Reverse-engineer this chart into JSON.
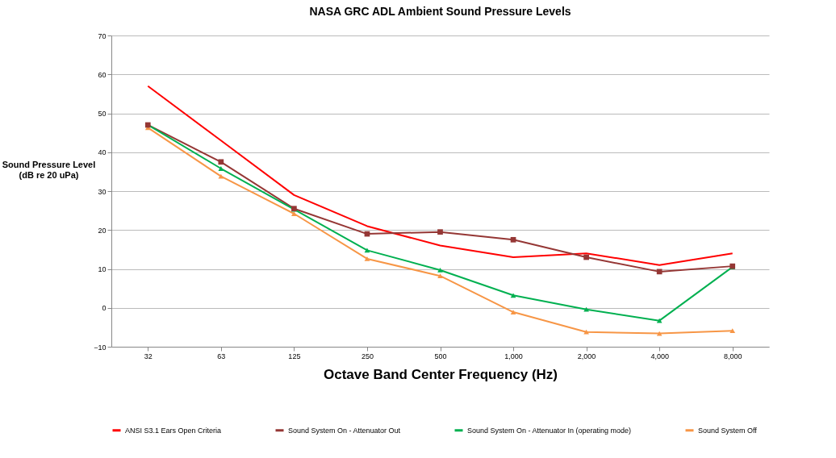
{
  "chart_data": {
    "type": "line",
    "title": "NASA GRC ADL Ambient Sound Pressure Levels",
    "xlabel": "Octave Band Center Frequency (Hz)",
    "ylabel": "Sound Pressure Level\n(dB re 20 uPa)",
    "categories": [
      "32",
      "63",
      "125",
      "250",
      "500",
      "1,000",
      "2,000",
      "4,000",
      "8,000"
    ],
    "series": [
      {
        "name": "ANSI S3.1 Ears Open Criteria",
        "color": "#ff0000",
        "marker": "none",
        "values": [
          57,
          43,
          29,
          21,
          16,
          13,
          14,
          11,
          14
        ]
      },
      {
        "name": "Sound System On - Attenuator Out",
        "color": "#953735",
        "marker": "square",
        "values": [
          47,
          37.5,
          25.5,
          19,
          19.5,
          17.5,
          13,
          9.3,
          10.7
        ]
      },
      {
        "name": "Sound System On - Attenuator In (operating mode)",
        "color": "#00b050",
        "marker": "triangle",
        "values": [
          47,
          35.8,
          25.3,
          14.8,
          9.7,
          3.2,
          -0.4,
          -3.3,
          10.5
        ]
      },
      {
        "name": "Sound System Off",
        "color": "#f79646",
        "marker": "triangle",
        "values": [
          46.3,
          33.8,
          24.2,
          12.6,
          8.2,
          -1.1,
          -6.2,
          -6.6,
          -5.9
        ]
      }
    ],
    "ylim": [
      -10,
      70
    ],
    "yticks": [
      -10,
      0,
      10,
      20,
      30,
      40,
      50,
      60,
      70
    ],
    "grid": "y",
    "legend": "bottom"
  }
}
